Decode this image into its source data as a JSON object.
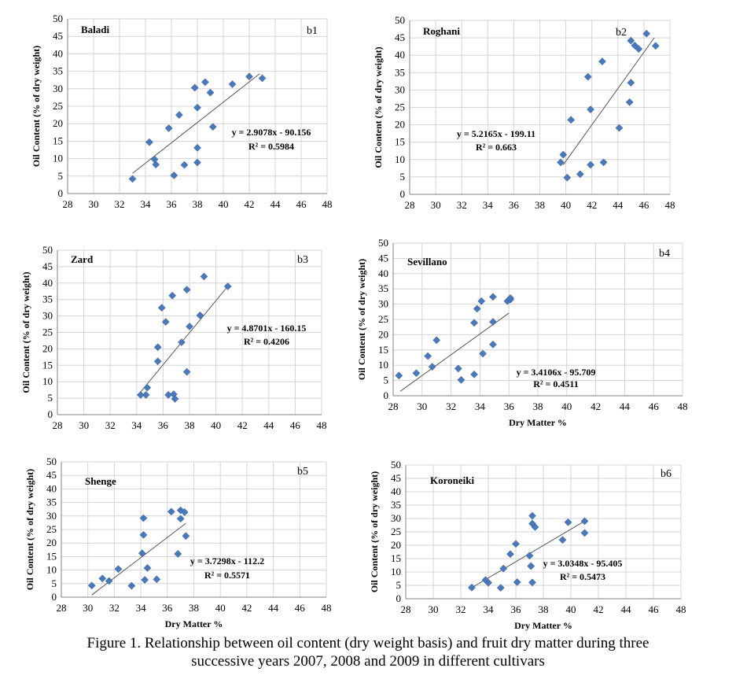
{
  "caption": {
    "line1": "Figure 1. Relationship between oil content (dry weight basis) and fruit dry matter during three",
    "line2": "successive years 2007, 2008 and 2009 in different cultivars"
  },
  "colors": {
    "point": "#4a78b8",
    "trend": "#555555",
    "grid": "#d4d4d4",
    "axis": "#808080",
    "text": "#000000"
  },
  "chart_data": [
    {
      "id": "b1",
      "type": "scatter",
      "panel_label": "b1",
      "cultivar": "Baladi",
      "ylabel": "Oil Content (% of dry weight)",
      "xlabel": "",
      "xlim": [
        28,
        48
      ],
      "ylim": [
        0,
        50
      ],
      "xticks": [
        "28",
        "30",
        "32",
        "34",
        "36",
        "38",
        "40",
        "42",
        "44",
        "46",
        "48"
      ],
      "yticks": [
        "0",
        "5",
        "10",
        "15",
        "20",
        "25",
        "30",
        "35",
        "40",
        "45",
        "50"
      ],
      "equation": "y = 2.9078x - 90.156",
      "r2": "R² = 0.5984",
      "trend": {
        "x1": 33,
        "x2": 42.8
      },
      "points": [
        [
          33,
          4.2
        ],
        [
          34.3,
          14.7
        ],
        [
          34.7,
          9.8
        ],
        [
          34.8,
          8.3
        ],
        [
          35.8,
          18.7
        ],
        [
          36.2,
          5.2
        ],
        [
          36.6,
          22.5
        ],
        [
          37,
          8.2
        ],
        [
          37.8,
          30.3
        ],
        [
          38,
          24.6
        ],
        [
          38,
          13.1
        ],
        [
          38,
          8.9
        ],
        [
          38.6,
          31.9
        ],
        [
          39,
          28.9
        ],
        [
          39.2,
          19.1
        ],
        [
          40.7,
          31.3
        ],
        [
          42,
          33.5
        ],
        [
          43,
          33
        ]
      ]
    },
    {
      "id": "b2",
      "type": "scatter",
      "panel_label": "b2",
      "cultivar": "Roghani",
      "ylabel": "Oil Content (% of dry weight)",
      "xlabel": "",
      "xlim": [
        28,
        48
      ],
      "ylim": [
        0,
        50
      ],
      "xticks": [
        "28",
        "30",
        "32",
        "34",
        "36",
        "38",
        "40",
        "42",
        "44",
        "46",
        "48"
      ],
      "yticks": [
        "0",
        "5",
        "10",
        "15",
        "20",
        "25",
        "30",
        "35",
        "40",
        "45",
        "50"
      ],
      "equation": "y = 5.2165x - 199.11",
      "r2": "R² = 0.663",
      "trend": {
        "x1": 39.8,
        "x2": 46.8
      },
      "points": [
        [
          39.6,
          9.2
        ],
        [
          39.8,
          11.4
        ],
        [
          40.1,
          4.8
        ],
        [
          40.4,
          21.4
        ],
        [
          41.1,
          5.8
        ],
        [
          41.7,
          33.8
        ],
        [
          41.9,
          24.4
        ],
        [
          41.9,
          8.5
        ],
        [
          42.8,
          38.2
        ],
        [
          42.9,
          9.2
        ],
        [
          45,
          44.2
        ],
        [
          45,
          32.1
        ],
        [
          44.9,
          26.5
        ],
        [
          44.1,
          19.1
        ],
        [
          45.3,
          42.8
        ],
        [
          45.6,
          41.8
        ],
        [
          46.2,
          46.2
        ],
        [
          46.9,
          42.7
        ]
      ]
    },
    {
      "id": "b3",
      "type": "scatter",
      "panel_label": "b3",
      "cultivar": "Zard",
      "ylabel": "Oil Content (% of dry weight)",
      "xlabel": "",
      "xlim": [
        28,
        48
      ],
      "ylim": [
        0,
        50
      ],
      "xticks": [
        "28",
        "30",
        "32",
        "34",
        "36",
        "38",
        "40",
        "42",
        "44",
        "46",
        "48"
      ],
      "yticks": [
        "0",
        "5",
        "10",
        "15",
        "20",
        "25",
        "30",
        "35",
        "40",
        "45",
        "50"
      ],
      "equation": "y = 4.8701x - 160.15",
      "r2": "R² = 0.4206",
      "trend": {
        "x1": 34.3,
        "x2": 41
      },
      "points": [
        [
          34.3,
          6
        ],
        [
          34.7,
          6
        ],
        [
          34.8,
          8.2
        ],
        [
          35.6,
          20.5
        ],
        [
          35.6,
          16.2
        ],
        [
          35.9,
          32.5
        ],
        [
          36.2,
          28.2
        ],
        [
          36.4,
          6
        ],
        [
          36.7,
          36.2
        ],
        [
          36.8,
          6.2
        ],
        [
          36.9,
          4.8
        ],
        [
          37.4,
          22
        ],
        [
          37.8,
          38
        ],
        [
          37.8,
          13
        ],
        [
          38,
          26.8
        ],
        [
          38.8,
          30.2
        ],
        [
          39.1,
          42
        ],
        [
          40.9,
          39
        ]
      ]
    },
    {
      "id": "b4",
      "type": "scatter",
      "panel_label": "b4",
      "cultivar": "Sevillano",
      "ylabel": "Oil Content (% of dry weight)",
      "xlabel": "Dry Matter %",
      "xlim": [
        28,
        48
      ],
      "ylim": [
        0,
        50
      ],
      "xticks": [
        "28",
        "30",
        "32",
        "34",
        "36",
        "38",
        "40",
        "42",
        "44",
        "46",
        "48"
      ],
      "yticks": [
        "0",
        "5",
        "10",
        "15",
        "20",
        "25",
        "30",
        "35",
        "40",
        "45",
        "50"
      ],
      "equation": "y = 3.4106x - 95.709",
      "r2": "R² = 0.4511",
      "trend": {
        "x1": 28.5,
        "x2": 36
      },
      "points": [
        [
          28.4,
          6.6
        ],
        [
          29.6,
          7.4
        ],
        [
          30.4,
          13
        ],
        [
          30.7,
          9.5
        ],
        [
          31,
          18.2
        ],
        [
          32.5,
          8.9
        ],
        [
          32.7,
          5.2
        ],
        [
          33.6,
          7
        ],
        [
          33.6,
          23.9
        ],
        [
          33.8,
          28.5
        ],
        [
          34.1,
          31
        ],
        [
          34.2,
          13.8
        ],
        [
          34.9,
          32.4
        ],
        [
          34.9,
          24.2
        ],
        [
          34.9,
          16.8
        ],
        [
          35.9,
          31
        ],
        [
          36.1,
          31.5
        ],
        [
          36.1,
          32
        ]
      ]
    },
    {
      "id": "b5",
      "type": "scatter",
      "panel_label": "b5",
      "cultivar": "Shenge",
      "ylabel": "Oil Content (% of dry weight)",
      "xlabel": "Dry Matter %",
      "xlim": [
        28,
        48
      ],
      "ylim": [
        0,
        50
      ],
      "xticks": [
        "28",
        "30",
        "32",
        "34",
        "36",
        "38",
        "40",
        "42",
        "44",
        "46",
        "48"
      ],
      "yticks": [
        "0",
        "5",
        "10",
        "15",
        "20",
        "25",
        "30",
        "35",
        "40",
        "45",
        "50"
      ],
      "equation": "y = 3.7298x - 112.2",
      "r2": "R² = 0.5571",
      "trend": {
        "x1": 30.3,
        "x2": 37.4
      },
      "points": [
        [
          30.3,
          4.3
        ],
        [
          31.1,
          6.9
        ],
        [
          31.6,
          6
        ],
        [
          32.3,
          10.4
        ],
        [
          33.3,
          4.2
        ],
        [
          34.1,
          16.2
        ],
        [
          34.2,
          29.2
        ],
        [
          34.2,
          23
        ],
        [
          34.3,
          6.4
        ],
        [
          34.5,
          10.8
        ],
        [
          35.2,
          6.6
        ],
        [
          36.3,
          31.6
        ],
        [
          36.8,
          16
        ],
        [
          37,
          29
        ],
        [
          37,
          32.1
        ],
        [
          37.3,
          31.4
        ],
        [
          37.4,
          22.6
        ]
      ]
    },
    {
      "id": "b6",
      "type": "scatter",
      "panel_label": "b6",
      "cultivar": "Koroneiki",
      "ylabel": "Oil Content (% of dry weight)",
      "xlabel": "Dry Matter %",
      "xlim": [
        28,
        48
      ],
      "ylim": [
        0,
        50
      ],
      "xticks": [
        "28",
        "30",
        "32",
        "34",
        "36",
        "38",
        "40",
        "42",
        "44",
        "46",
        "48"
      ],
      "yticks": [
        "0",
        "5",
        "10",
        "15",
        "20",
        "25",
        "30",
        "35",
        "40",
        "45",
        "50"
      ],
      "equation": "y = 3.0348x - 95.405",
      "r2": "R² = 0.5473",
      "trend": {
        "x1": 32.6,
        "x2": 40.9
      },
      "points": [
        [
          32.8,
          4.2
        ],
        [
          33.8,
          7
        ],
        [
          34,
          6
        ],
        [
          34.9,
          4.1
        ],
        [
          35.1,
          11.3
        ],
        [
          35.6,
          16.7
        ],
        [
          36,
          20.5
        ],
        [
          36.1,
          6.2
        ],
        [
          37,
          16.1
        ],
        [
          37.1,
          12.2
        ],
        [
          37.2,
          6.1
        ],
        [
          37.2,
          28.1
        ],
        [
          37.2,
          31
        ],
        [
          37.4,
          26.8
        ],
        [
          39.4,
          22
        ],
        [
          39.8,
          28.6
        ],
        [
          41,
          24.6
        ],
        [
          41,
          29
        ]
      ]
    }
  ]
}
